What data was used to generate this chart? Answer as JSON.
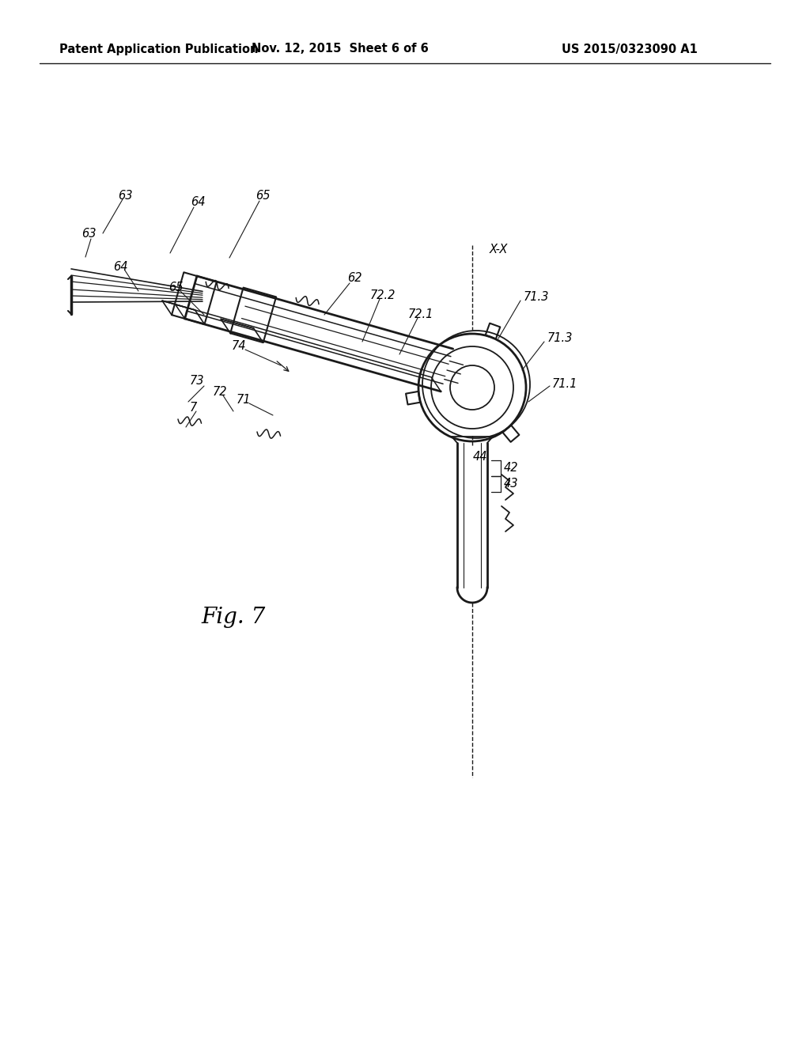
{
  "background_color": "#ffffff",
  "header_left": "Patent Application Publication",
  "header_center": "Nov. 12, 2015  Sheet 6 of 6",
  "header_right": "US 2015/0323090 A1",
  "figure_label": "Fig. 7",
  "line_color": "#1a1a1a",
  "label_fontsize": 10.5,
  "fig_label_fontsize": 20,
  "header_fontsize": 10.5
}
